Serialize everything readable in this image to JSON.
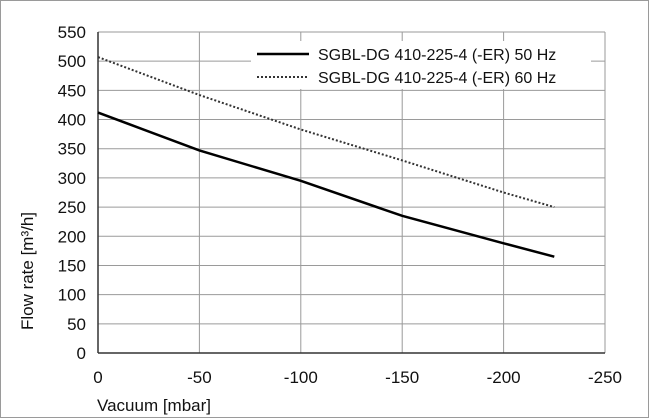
{
  "chart_data": {
    "type": "line",
    "xlabel": "Vacuum [mbar]",
    "ylabel": "Flow rate [m³/h]",
    "xlim": [
      0,
      -250
    ],
    "ylim": [
      0,
      550
    ],
    "x_ticks": [
      "0",
      "-50",
      "-100",
      "-150",
      "-200",
      "-250"
    ],
    "y_ticks": [
      "0",
      "50",
      "100",
      "150",
      "200",
      "250",
      "300",
      "350",
      "400",
      "450",
      "500",
      "550"
    ],
    "grid": true,
    "legend_position": "top-right",
    "series": [
      {
        "name": "SGBL-DG 410-225-4 (-ER) 50 Hz",
        "style": "solid",
        "color": "#000000",
        "x": [
          0,
          -50,
          -100,
          -150,
          -200,
          -225
        ],
        "y": [
          412,
          347,
          295,
          235,
          188,
          165
        ]
      },
      {
        "name": "SGBL-DG 410-225-4 (-ER) 60 Hz",
        "style": "dotted",
        "color": "#333333",
        "x": [
          0,
          -50,
          -100,
          -150,
          -200,
          -225
        ],
        "y": [
          507,
          442,
          383,
          330,
          275,
          250
        ]
      }
    ]
  }
}
